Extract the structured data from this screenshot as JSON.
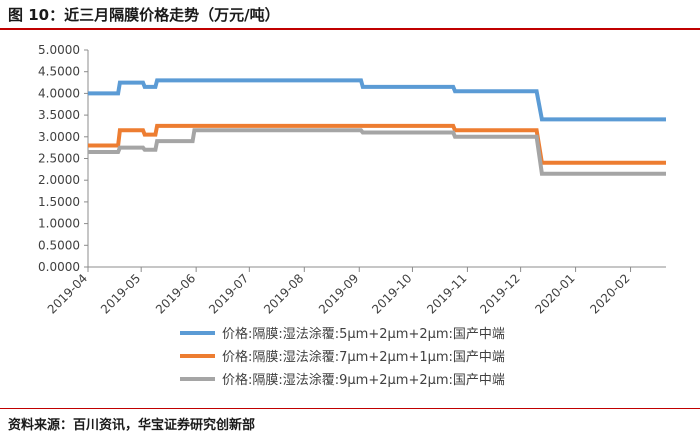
{
  "header": {
    "title": "图 10：近三月隔膜价格走势（万元/吨）"
  },
  "footer": {
    "source": "资料来源：百川资讯，华宝证券研究创新部"
  },
  "chart_data": {
    "type": "line",
    "ylim": [
      0,
      5
    ],
    "yticks": [
      "5.0000",
      "4.5000",
      "4.0000",
      "3.5000",
      "3.0000",
      "2.5000",
      "2.0000",
      "1.5000",
      "1.0000",
      "0.5000",
      "0.0000"
    ],
    "xlim": [
      "2019-04-01",
      "2020-02-21"
    ],
    "xticks": [
      "2019-04",
      "2019-05",
      "2019-06",
      "2019-07",
      "2019-08",
      "2019-09",
      "2019-10",
      "2019-11",
      "2019-12",
      "2020-01",
      "2020-02"
    ],
    "grid": false,
    "legend_position": "bottom",
    "series": [
      {
        "name": "价格:隔膜:湿法涂覆:5μm+2μm+2μm:国产中端",
        "color": "#5b9bd5",
        "points": [
          [
            "2019-04-01",
            4.0
          ],
          [
            "2019-04-18",
            4.0
          ],
          [
            "2019-04-19",
            4.25
          ],
          [
            "2019-05-02",
            4.25
          ],
          [
            "2019-05-03",
            4.15
          ],
          [
            "2019-05-09",
            4.15
          ],
          [
            "2019-05-10",
            4.3
          ],
          [
            "2019-09-02",
            4.3
          ],
          [
            "2019-09-03",
            4.15
          ],
          [
            "2019-10-24",
            4.15
          ],
          [
            "2019-10-25",
            4.05
          ],
          [
            "2019-12-10",
            4.05
          ],
          [
            "2019-12-13",
            3.4
          ],
          [
            "2020-02-21",
            3.4
          ]
        ]
      },
      {
        "name": "价格:隔膜:湿法涂覆:7μm+2μm+1μm:国产中端",
        "color": "#ed7d31",
        "points": [
          [
            "2019-04-01",
            2.8
          ],
          [
            "2019-04-18",
            2.8
          ],
          [
            "2019-04-19",
            3.15
          ],
          [
            "2019-05-02",
            3.15
          ],
          [
            "2019-05-03",
            3.05
          ],
          [
            "2019-05-09",
            3.05
          ],
          [
            "2019-05-10",
            3.25
          ],
          [
            "2019-10-24",
            3.25
          ],
          [
            "2019-10-25",
            3.15
          ],
          [
            "2019-12-10",
            3.15
          ],
          [
            "2019-12-13",
            2.4
          ],
          [
            "2020-02-21",
            2.4
          ]
        ]
      },
      {
        "name": "价格:隔膜:湿法涂覆:9μm+2μm+2μm:国产中端",
        "color": "#a5a5a5",
        "points": [
          [
            "2019-04-01",
            2.65
          ],
          [
            "2019-04-18",
            2.65
          ],
          [
            "2019-04-19",
            2.75
          ],
          [
            "2019-05-02",
            2.75
          ],
          [
            "2019-05-03",
            2.7
          ],
          [
            "2019-05-09",
            2.7
          ],
          [
            "2019-05-10",
            2.9
          ],
          [
            "2019-05-30",
            2.9
          ],
          [
            "2019-05-31",
            3.15
          ],
          [
            "2019-09-02",
            3.15
          ],
          [
            "2019-09-03",
            3.1
          ],
          [
            "2019-10-24",
            3.1
          ],
          [
            "2019-10-25",
            3.0
          ],
          [
            "2019-12-10",
            3.0
          ],
          [
            "2019-12-13",
            2.15
          ],
          [
            "2020-02-21",
            2.15
          ]
        ]
      }
    ]
  }
}
